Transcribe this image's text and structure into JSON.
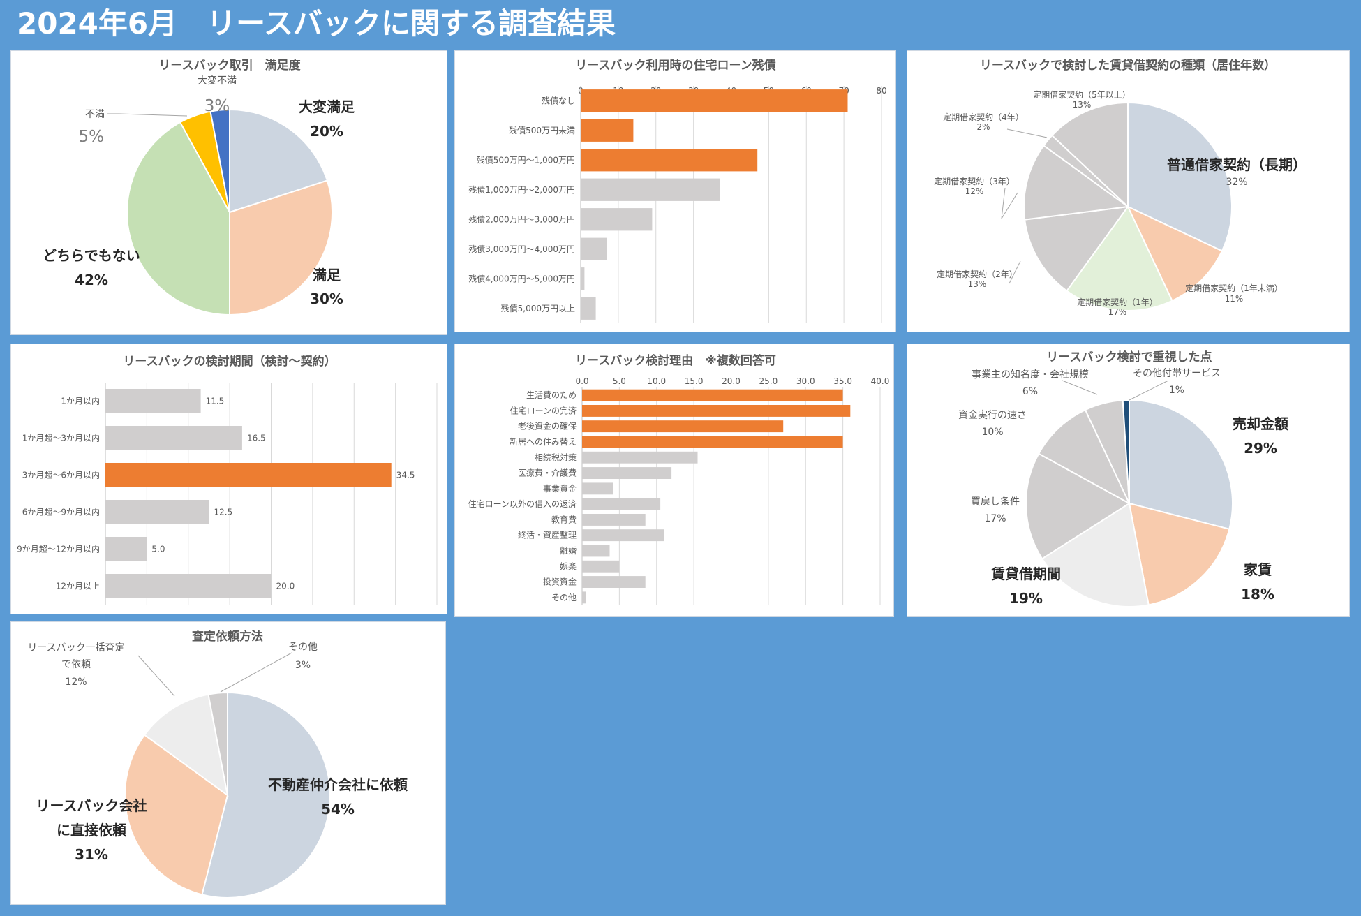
{
  "page": {
    "title": "2024年6月　リースバックに関する調査結果"
  },
  "chart_data": [
    {
      "id": "satisfaction",
      "type": "pie",
      "title": "リースバック取引　満足度",
      "slices": [
        {
          "label": "大変満足",
          "pct_label": "20%",
          "value": 20,
          "color": "#ccd5e0"
        },
        {
          "label": "満足",
          "pct_label": "30%",
          "value": 30,
          "color": "#f8cbad"
        },
        {
          "label": "どちらでもない",
          "pct_label": "42%",
          "value": 42,
          "color": "#c5e0b4"
        },
        {
          "label": "不満",
          "pct_label": "5%",
          "value": 5,
          "color": "#ffc000"
        },
        {
          "label": "大変不満",
          "pct_label": "3%",
          "value": 3,
          "color": "#4472c4"
        }
      ]
    },
    {
      "id": "loan-balance",
      "type": "bar",
      "orientation": "horizontal",
      "title": "リースバック利用時の住宅ローン残債",
      "categories": [
        "残債なし",
        "残債500万円未満",
        "残債500万円～1,000万円",
        "残債1,000万円～2,000万円",
        "残債2,000万円～3,000万円",
        "残債3,000万円～4,000万円",
        "残債4,000万円～5,000万円",
        "残債5,000万円以上"
      ],
      "values": [
        71,
        14,
        47,
        37,
        19,
        7,
        1,
        4
      ],
      "highlight": [
        true,
        true,
        true,
        false,
        false,
        false,
        false,
        false
      ],
      "xlim": [
        0,
        80
      ],
      "ticks": [
        "0",
        "10",
        "20",
        "30",
        "40",
        "50",
        "60",
        "70",
        "80"
      ],
      "colors": {
        "highlight": "#ed7d31",
        "normal": "#d0cece"
      }
    },
    {
      "id": "lease-type",
      "type": "pie",
      "title": "リースバックで検討した賃貸借契約の種類（居住年数）",
      "slices": [
        {
          "label": "普通借家契約（長期）",
          "pct_label": "32%",
          "value": 32,
          "color": "#ccd5e0"
        },
        {
          "label": "定期借家契約（1年未満）",
          "pct_label": "11%",
          "value": 11,
          "color": "#f8cbad"
        },
        {
          "label": "定期借家契約（1年）",
          "pct_label": "17%",
          "value": 17,
          "color": "#e2f0d9"
        },
        {
          "label": "定期借家契約（2年）",
          "pct_label": "13%",
          "value": 13,
          "color": "#d0cece"
        },
        {
          "label": "定期借家契約（3年）",
          "pct_label": "12%",
          "value": 12,
          "color": "#d0cece"
        },
        {
          "label": "定期借家契約（4年）",
          "pct_label": "2%",
          "value": 2,
          "color": "#d0cece"
        },
        {
          "label": "定期借家契約（5年以上）",
          "pct_label": "13%",
          "value": 13,
          "color": "#d0cece"
        }
      ]
    },
    {
      "id": "period",
      "type": "bar",
      "orientation": "horizontal",
      "title": "リースバックの検討期間（検討～契約）",
      "categories": [
        "1か月以内",
        "1か月超～3か月以内",
        "3か月超～6か月以内",
        "6か月超～9か月以内",
        "9か月超～12か月以内",
        "12か月以上"
      ],
      "values": [
        11.5,
        16.5,
        34.5,
        12.5,
        5.0,
        20.0
      ],
      "value_labels": [
        "11.5",
        "16.5",
        "34.5",
        "12.5",
        "5.0",
        "20.0"
      ],
      "highlight": [
        false,
        false,
        true,
        false,
        false,
        false
      ],
      "xlim": [
        0,
        40
      ],
      "colors": {
        "highlight": "#ed7d31",
        "normal": "#d0cece"
      }
    },
    {
      "id": "reasons",
      "type": "bar",
      "orientation": "horizontal",
      "title": "リースバック検討理由　※複数回答可",
      "categories": [
        "生活費のため",
        "住宅ローンの完済",
        "老後資金の確保",
        "新居への住み替え",
        "相続税対策",
        "医療費・介護費",
        "事業資金",
        "住宅ローン以外の借入の返済",
        "教育費",
        "終活・資産整理",
        "離婚",
        "娯楽",
        "投資資金",
        "その他"
      ],
      "values": [
        35.0,
        36.0,
        27.0,
        35.0,
        15.5,
        12.0,
        4.2,
        10.5,
        8.5,
        11.0,
        3.7,
        5.0,
        8.5,
        0.5
      ],
      "highlight": [
        true,
        true,
        true,
        true,
        false,
        false,
        false,
        false,
        false,
        false,
        false,
        false,
        false,
        false
      ],
      "xlim": [
        0,
        40
      ],
      "ticks": [
        "0.0",
        "5.0",
        "10.0",
        "15.0",
        "20.0",
        "25.0",
        "30.0",
        "35.0",
        "40.0"
      ],
      "colors": {
        "highlight": "#ed7d31",
        "normal": "#d0cece"
      }
    },
    {
      "id": "priorities",
      "type": "pie",
      "title": "リースバック検討で重視した点",
      "slices": [
        {
          "label": "売却金額",
          "pct_label": "29%",
          "value": 29,
          "color": "#ccd5e0"
        },
        {
          "label": "家賃",
          "pct_label": "18%",
          "value": 18,
          "color": "#f8cbad"
        },
        {
          "label": "賃貸借期間",
          "pct_label": "19%",
          "value": 19,
          "color": "#ededed"
        },
        {
          "label": "買戻し条件",
          "pct_label": "17%",
          "value": 17,
          "color": "#d0cece"
        },
        {
          "label": "資金実行の速さ",
          "pct_label": "10%",
          "value": 10,
          "color": "#d0cece"
        },
        {
          "label": "事業主の知名度・会社規模",
          "pct_label": "6%",
          "value": 6,
          "color": "#d0cece"
        },
        {
          "label": "その他付帯サービス",
          "pct_label": "1%",
          "value": 1,
          "color": "#1f4e79"
        }
      ]
    },
    {
      "id": "appraisal",
      "type": "pie",
      "title": "査定依頼方法",
      "slices": [
        {
          "label": "不動産仲介会社に依頼",
          "pct_label": "54%",
          "value": 54,
          "color": "#ccd5e0"
        },
        {
          "label": "リースバック会社に直接依頼",
          "label_lines": [
            "リースバック会社",
            "に直接依頼"
          ],
          "pct_label": "31%",
          "value": 31,
          "color": "#f8cbad"
        },
        {
          "label": "リースバック一括査定で依頼",
          "label_lines": [
            "リースバック一括査定",
            "で依頼"
          ],
          "pct_label": "12%",
          "value": 12,
          "color": "#ededed"
        },
        {
          "label": "その他",
          "pct_label": "3%",
          "value": 3,
          "color": "#d0cece"
        }
      ]
    }
  ]
}
